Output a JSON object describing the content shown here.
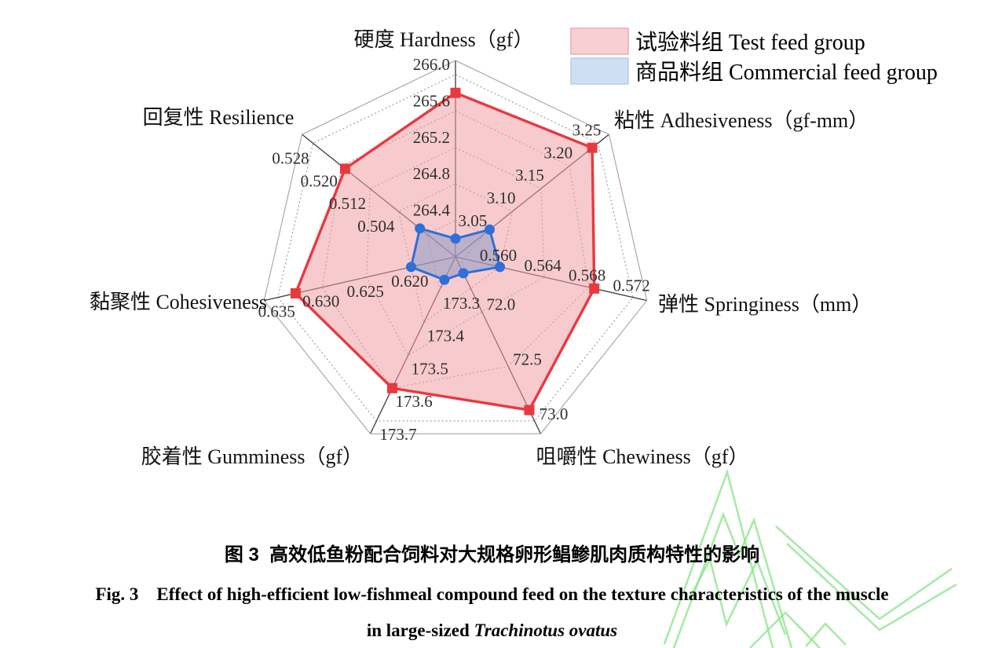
{
  "chart_data": {
    "type": "radar",
    "legend_position": "top-right",
    "grid": "dotted-web",
    "axes": [
      {
        "label": "硬度 Hardness（gf）",
        "min": 264.0,
        "max": 266.0,
        "divisions": 5,
        "ticks": [
          "264.4",
          "264.8",
          "265.2",
          "265.6",
          "266.0"
        ]
      },
      {
        "label": "粘性 Adhesiveness（gf-mm）",
        "min": 3.0,
        "max": 3.25,
        "divisions": 5,
        "ticks": [
          "3.05",
          "3.10",
          "3.15",
          "3.20",
          "3.25"
        ]
      },
      {
        "label": "弹性 Springiness（mm）",
        "min": 0.556,
        "max": 0.572,
        "divisions": 4,
        "ticks": [
          "0.560",
          "0.564",
          "0.568",
          "0.572"
        ]
      },
      {
        "label": "咀嚼性 Chewiness（gf）",
        "min": 71.5,
        "max": 73.0,
        "divisions": 3,
        "ticks": [
          "72.0",
          "72.5",
          "73.0"
        ]
      },
      {
        "label": "胶着性 Gumminess（gf）",
        "min": 173.2,
        "max": 173.7,
        "divisions": 5,
        "ticks": [
          "173.3",
          "173.4",
          "173.5",
          "173.6",
          "173.7"
        ]
      },
      {
        "label": "黏聚性 Cohesiveness",
        "min": 0.615,
        "max": 0.635,
        "divisions": 4,
        "ticks": [
          "0.620",
          "0.625",
          "0.630",
          "0.635"
        ]
      },
      {
        "label": "回复性 Resilience",
        "min": 0.488,
        "max": 0.528,
        "divisions": 5,
        "ticks": [
          "0.504",
          "0.512",
          "0.520",
          "0.528"
        ]
      }
    ],
    "series": [
      {
        "name": "试验料组 Test feed group",
        "marker": "square",
        "stroke": "#e73940",
        "fill": "rgba(240,160,164,0.55)",
        "values": [
          265.8,
          3.24,
          0.5685,
          72.9,
          173.6,
          0.633,
          0.519
        ]
      },
      {
        "name": "商品料组 Commercial feed group",
        "marker": "circle",
        "stroke": "#2e6fd9",
        "fill": "rgba(130,150,200,0.50)",
        "values": [
          264.2,
          3.06,
          0.56,
          71.65,
          173.27,
          0.62,
          0.498
        ]
      }
    ]
  },
  "legend": {
    "items": [
      {
        "label": "试验料组 Test feed group",
        "fill": "#f8d0d4",
        "border": "#f1a9af"
      },
      {
        "label": "商品料组 Commercial feed group",
        "fill": "#cfdff3",
        "border": "#b3cdec"
      }
    ]
  },
  "caption": {
    "zh": "图 3  高效低鱼粉配合饲料对大规格卵形鲳鲹肌肉质构特性的影响",
    "en_line1": "Fig. 3    Effect of high-efficient low-fishmeal compound feed on the texture characteristics of the muscle",
    "en_line2_prefix": "in large-sized ",
    "en_line2_species": "Trachinotus ovatus"
  },
  "colors": {
    "grid": "#8c8c8c",
    "spoke": "#3b3b3b",
    "boundary": "#9a9a9a",
    "tick_text": "#2f2f2f",
    "label_text": "#111111",
    "watermark": "#90e690"
  }
}
